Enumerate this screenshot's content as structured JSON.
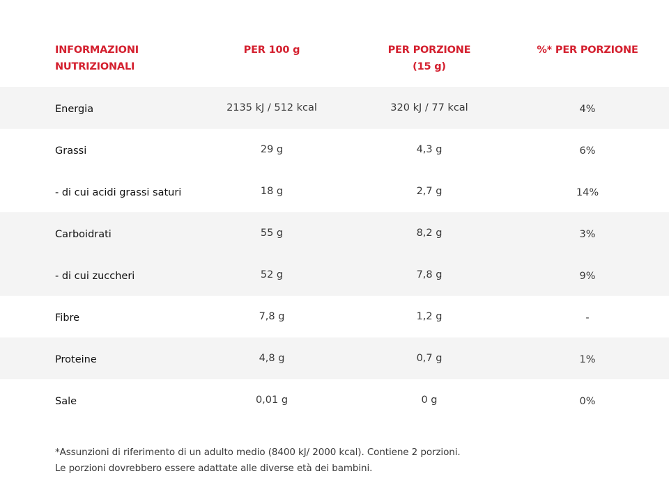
{
  "header": {
    "col0": "INFORMAZIONI\nNUTRIZIONALI",
    "col0_line1": "INFORMAZIONI",
    "col0_line2": "NUTRIZIONALI",
    "col1": "PER 100 g",
    "col2_line1": "PER PORZIONE",
    "col2_line2": "(15 g)",
    "col3": "%* PER PORZIONE"
  },
  "rows": [
    {
      "name": "Energia",
      "per100": "2135 kJ / 512 kcal",
      "perPortion": "320 kJ / 77 kcal",
      "pct": "4%"
    },
    {
      "name": "Grassi",
      "per100": "29 g",
      "perPortion": "4,3 g",
      "pct": "6%"
    },
    {
      "name": "- di cui acidi grassi saturi",
      "per100": "18 g",
      "perPortion": "2,7 g",
      "pct": "14%"
    },
    {
      "name": "Carboidrati",
      "per100": "55 g",
      "perPortion": "8,2 g",
      "pct": "3%"
    },
    {
      "name": "- di cui zuccheri",
      "per100": "52 g",
      "perPortion": "7,8 g",
      "pct": "9%"
    },
    {
      "name": "Fibre",
      "per100": "7,8 g",
      "perPortion": "1,2 g",
      "pct": "-"
    },
    {
      "name": "Proteine",
      "per100": "4,8 g",
      "perPortion": "0,7 g",
      "pct": "1%"
    },
    {
      "name": "Sale",
      "per100": "0,01 g",
      "perPortion": "0 g",
      "pct": "0%"
    }
  ],
  "footnote": {
    "line1": "*Assunzioni di riferimento di un adulto medio (8400 kJ/ 2000 kcal). Contiene 2 porzioni.",
    "line2": "Le porzioni dovrebbero essere adattate alle diverse età dei bambini."
  },
  "colors": {
    "accent": "#d4202f",
    "row_shade": "#f4f4f4"
  }
}
